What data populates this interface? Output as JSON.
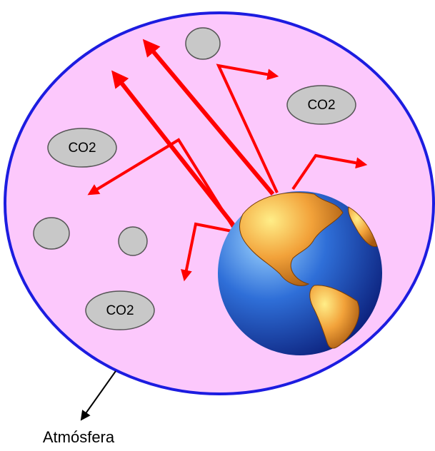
{
  "molecules": [
    {
      "label": "CO2"
    },
    {
      "label": "CO2"
    },
    {
      "label": "CO2"
    }
  ],
  "caption": "Atmósfera"
}
